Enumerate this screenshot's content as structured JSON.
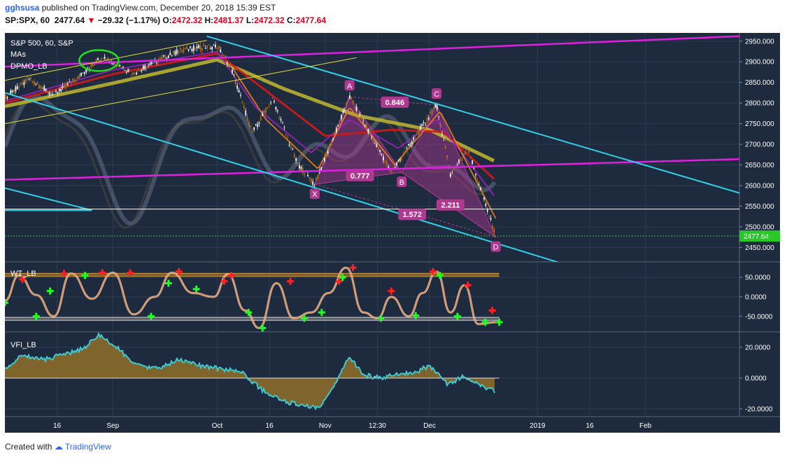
{
  "header": {
    "user": "gghsusa",
    "published": "published on TradingView.com, December 20, 2018 15:39 EST",
    "symbol": "SP:SPX, 60",
    "last": "2477.64",
    "change": "−29.32 (−1.17%)",
    "o_label": "O:",
    "o": "2472.32",
    "h_label": "H:",
    "h": "2481.37",
    "l_label": "L:",
    "l": "2472.32",
    "c_label": "C:",
    "c": "2477.64"
  },
  "footer": {
    "created": "Created with",
    "logo": "TradingView"
  },
  "colors": {
    "background": "#1e2b3f",
    "pane_bg": "#1c2a3e",
    "grid": "#2c3b52",
    "price_line": "#ffffff",
    "magenta": "#e020e0",
    "cyan": "#30d0e8",
    "yellow": "#e8e030",
    "olive_ma": "#b8b030",
    "red_ma": "#d01818",
    "purple_ma": "#a020c0",
    "orange_ma": "#f08020",
    "pattern": "#b03890",
    "vfi_fill": "#8a6a2a",
    "vfi_line": "#40c8d0",
    "wt_line": "#e89050",
    "plus_red": "#ff2020",
    "plus_green": "#20ff20",
    "last_green": "#28c828"
  },
  "chart_data": [
    {
      "type": "line",
      "pane": "price",
      "legend": [
        "S&P 500, 60, S&P",
        "MAs",
        "DPMO_LB"
      ],
      "ylim": [
        2415,
        2970
      ],
      "yticks": [
        2450,
        2500,
        2550,
        2600,
        2650,
        2700,
        2750,
        2800,
        2850,
        2900,
        2950
      ],
      "ytick_labels": [
        "2450.000",
        "2500.000",
        "2550.000",
        "2600.000",
        "2650.000",
        "2700.000",
        "2750.000",
        "2800.000",
        "2850.000",
        "2900.000",
        "2950.000"
      ],
      "xlim": [
        "2018-08-01",
        "2019-02-28"
      ],
      "xticks": [
        {
          "date": "2018-08-16",
          "label": "16"
        },
        {
          "date": "2018-09-01",
          "label": "Sep"
        },
        {
          "date": "2018-10-01",
          "label": "Oct"
        },
        {
          "date": "2018-10-16",
          "label": "16"
        },
        {
          "date": "2018-11-01",
          "label": "Nov"
        },
        {
          "date": "2018-11-16",
          "label": "12:30"
        },
        {
          "date": "2018-12-01",
          "label": "Dec"
        },
        {
          "date": "2019-01-01",
          "label": "2019"
        },
        {
          "date": "2019-01-16",
          "label": "16"
        },
        {
          "date": "2019-02-01",
          "label": "Feb"
        }
      ],
      "last_price": {
        "value": 2477.64,
        "label": "2477.64"
      },
      "price_path": [
        [
          "2018-08-01",
          2813
        ],
        [
          "2018-08-08",
          2858
        ],
        [
          "2018-08-15",
          2820
        ],
        [
          "2018-08-22",
          2862
        ],
        [
          "2018-08-29",
          2914
        ],
        [
          "2018-09-07",
          2872
        ],
        [
          "2018-09-14",
          2904
        ],
        [
          "2018-09-21",
          2930
        ],
        [
          "2018-10-01",
          2938
        ],
        [
          "2018-10-05",
          2885
        ],
        [
          "2018-10-11",
          2728
        ],
        [
          "2018-10-17",
          2810
        ],
        [
          "2018-10-24",
          2652
        ],
        [
          "2018-10-29",
          2603
        ],
        [
          "2018-11-08",
          2815
        ],
        [
          "2018-11-20",
          2632
        ],
        [
          "2018-12-03",
          2795
        ],
        [
          "2018-12-07",
          2628
        ],
        [
          "2018-12-12",
          2690
        ],
        [
          "2018-12-18",
          2530
        ],
        [
          "2018-12-20",
          2477.64
        ]
      ],
      "moving_averages": [
        {
          "name": "MA long",
          "color": "#b8b030",
          "points": [
            [
              "2018-08-01",
              2792
            ],
            [
              "2018-09-01",
              2848
            ],
            [
              "2018-10-01",
              2905
            ],
            [
              "2018-10-20",
              2835
            ],
            [
              "2018-11-10",
              2770
            ],
            [
              "2018-12-01",
              2735
            ],
            [
              "2018-12-20",
              2658
            ]
          ]
        },
        {
          "name": "MA mid",
          "color": "#d01818",
          "points": [
            [
              "2018-08-01",
              2800
            ],
            [
              "2018-09-01",
              2870
            ],
            [
              "2018-10-01",
              2920
            ],
            [
              "2018-10-15",
              2830
            ],
            [
              "2018-11-01",
              2720
            ],
            [
              "2018-11-20",
              2735
            ],
            [
              "2018-12-05",
              2730
            ],
            [
              "2018-12-20",
              2612
            ]
          ]
        },
        {
          "name": "MA short",
          "color": "#a020c0",
          "points": [
            [
              "2018-08-01",
              2805
            ],
            [
              "2018-09-01",
              2880
            ],
            [
              "2018-10-01",
              2925
            ],
            [
              "2018-10-12",
              2790
            ],
            [
              "2018-10-28",
              2680
            ],
            [
              "2018-11-08",
              2760
            ],
            [
              "2018-11-22",
              2690
            ],
            [
              "2018-12-03",
              2760
            ],
            [
              "2018-12-20",
              2570
            ]
          ]
        },
        {
          "name": "MA fast",
          "color": "#f08020",
          "points": [
            [
              "2018-10-05",
              2890
            ],
            [
              "2018-10-15",
              2760
            ],
            [
              "2018-10-30",
              2640
            ],
            [
              "2018-11-08",
              2790
            ],
            [
              "2018-11-21",
              2650
            ],
            [
              "2018-12-04",
              2780
            ],
            [
              "2018-12-20",
              2520
            ]
          ]
        }
      ],
      "trend_lines": [
        {
          "color": "#e020e0",
          "from": [
            "2018-08-01",
            2888
          ],
          "to": [
            "2019-02-28",
            2962
          ]
        },
        {
          "color": "#e020e0",
          "from": [
            "2018-08-01",
            2614
          ],
          "to": [
            "2019-02-28",
            2664
          ]
        },
        {
          "color": "#30d0e8",
          "from": [
            "2018-08-01",
            2825
          ],
          "to": [
            "2019-01-10",
            2406
          ]
        },
        {
          "color": "#30d0e8",
          "from": [
            "2018-09-28",
            2962
          ],
          "to": [
            "2019-02-28",
            2582
          ]
        },
        {
          "color": "#30d0e8",
          "from": [
            "2018-08-01",
            2594
          ],
          "to": [
            "2018-08-26",
            2540
          ]
        },
        {
          "color": "#30d0e8",
          "from": [
            "2018-08-01",
            2540
          ],
          "to": [
            "2018-08-26",
            2540
          ]
        },
        {
          "color": "#e8e030",
          "from": [
            "2018-08-01",
            2855
          ],
          "to": [
            "2018-09-28",
            2952
          ]
        },
        {
          "color": "#e8e030",
          "from": [
            "2018-08-01",
            2750
          ],
          "to": [
            "2018-11-10",
            2910
          ]
        }
      ],
      "horizontal_levels": [
        2543
      ],
      "harmonic_pattern": {
        "points": [
          {
            "label": "X",
            "date": "2018-10-29",
            "value": 2603
          },
          {
            "label": "A",
            "date": "2018-11-08",
            "value": 2815
          },
          {
            "label": "B",
            "date": "2018-11-23",
            "value": 2632
          },
          {
            "label": "C",
            "date": "2018-12-03",
            "value": 2795
          },
          {
            "label": "D",
            "date": "2018-12-20",
            "value": 2475
          }
        ],
        "ratios": [
          {
            "label": "0.846",
            "date": "2018-11-21",
            "value": 2802
          },
          {
            "label": "0.777",
            "date": "2018-11-11",
            "value": 2624
          },
          {
            "label": "1.572",
            "date": "2018-11-26",
            "value": 2530
          },
          {
            "label": "2.211",
            "date": "2018-12-07",
            "value": 2553
          }
        ]
      }
    },
    {
      "type": "line",
      "pane": "wt",
      "legend": "WT_LB",
      "ylim": [
        -90,
        90
      ],
      "yticks": [
        50,
        0,
        -50
      ],
      "ytick_labels": [
        "50.0000",
        "0.0000",
        "-50.0000"
      ],
      "levels": [
        60,
        53,
        -53,
        -60
      ],
      "series": [
        {
          "x": [
            "2018-08-01",
            "2018-08-05",
            "2018-08-10",
            "2018-08-15",
            "2018-08-20",
            "2018-08-26",
            "2018-09-01",
            "2018-09-07",
            "2018-09-13",
            "2018-09-18",
            "2018-09-24",
            "2018-09-30",
            "2018-10-04",
            "2018-10-09",
            "2018-10-13",
            "2018-10-18",
            "2018-10-23",
            "2018-10-28",
            "2018-11-02",
            "2018-11-07",
            "2018-11-12",
            "2018-11-16",
            "2018-11-20",
            "2018-11-25",
            "2018-11-29",
            "2018-12-03",
            "2018-12-07",
            "2018-12-11",
            "2018-12-15",
            "2018-12-20"
          ],
          "values": [
            -10,
            55,
            5,
            -50,
            60,
            -5,
            62,
            -45,
            0,
            62,
            10,
            0,
            58,
            -35,
            -80,
            35,
            -55,
            -40,
            10,
            75,
            -40,
            -55,
            0,
            -50,
            10,
            65,
            -40,
            30,
            -70,
            -65
          ]
        }
      ],
      "signals_red": [
        [
          "2018-08-06",
          45
        ],
        [
          "2018-08-18",
          60
        ],
        [
          "2018-08-29",
          62
        ],
        [
          "2018-09-06",
          62
        ],
        [
          "2018-09-20",
          65
        ],
        [
          "2018-10-03",
          40
        ],
        [
          "2018-10-05",
          55
        ],
        [
          "2018-10-22",
          40
        ],
        [
          "2018-11-05",
          40
        ],
        [
          "2018-11-09",
          75
        ],
        [
          "2018-11-20",
          15
        ],
        [
          "2018-12-02",
          65
        ],
        [
          "2018-12-12",
          30
        ],
        [
          "2018-12-19",
          -35
        ]
      ],
      "signals_green": [
        [
          "2018-08-01",
          -15
        ],
        [
          "2018-08-10",
          -50
        ],
        [
          "2018-08-14",
          15
        ],
        [
          "2018-08-24",
          55
        ],
        [
          "2018-09-12",
          -50
        ],
        [
          "2018-09-17",
          35
        ],
        [
          "2018-09-25",
          20
        ],
        [
          "2018-10-10",
          -40
        ],
        [
          "2018-10-14",
          -80
        ],
        [
          "2018-10-26",
          -55
        ],
        [
          "2018-10-31",
          -40
        ],
        [
          "2018-11-06",
          50
        ],
        [
          "2018-11-17",
          -55
        ],
        [
          "2018-11-27",
          -48
        ],
        [
          "2018-12-04",
          55
        ],
        [
          "2018-12-09",
          -50
        ],
        [
          "2018-12-17",
          -65
        ],
        [
          "2018-12-21",
          -65
        ]
      ]
    },
    {
      "type": "area",
      "pane": "vfi",
      "legend": "VFI_LB",
      "ylim": [
        -25,
        30
      ],
      "yticks": [
        20,
        0,
        -20
      ],
      "ytick_labels": [
        "20.0000",
        "0.0000",
        "-20.0000"
      ],
      "x": [
        "2018-08-01",
        "2018-08-06",
        "2018-08-12",
        "2018-08-18",
        "2018-08-24",
        "2018-08-28",
        "2018-09-02",
        "2018-09-08",
        "2018-09-14",
        "2018-09-20",
        "2018-09-26",
        "2018-10-02",
        "2018-10-08",
        "2018-10-14",
        "2018-10-20",
        "2018-10-26",
        "2018-10-30",
        "2018-11-03",
        "2018-11-08",
        "2018-11-12",
        "2018-11-17",
        "2018-11-22",
        "2018-11-27",
        "2018-12-01",
        "2018-12-06",
        "2018-12-11",
        "2018-12-16",
        "2018-12-20"
      ],
      "values": [
        5,
        15,
        12,
        15,
        20,
        28,
        20,
        8,
        6,
        12,
        8,
        6,
        4,
        -8,
        -15,
        -18,
        -20,
        -8,
        14,
        2,
        0,
        3,
        4,
        8,
        -4,
        1,
        -5,
        -9
      ]
    }
  ]
}
